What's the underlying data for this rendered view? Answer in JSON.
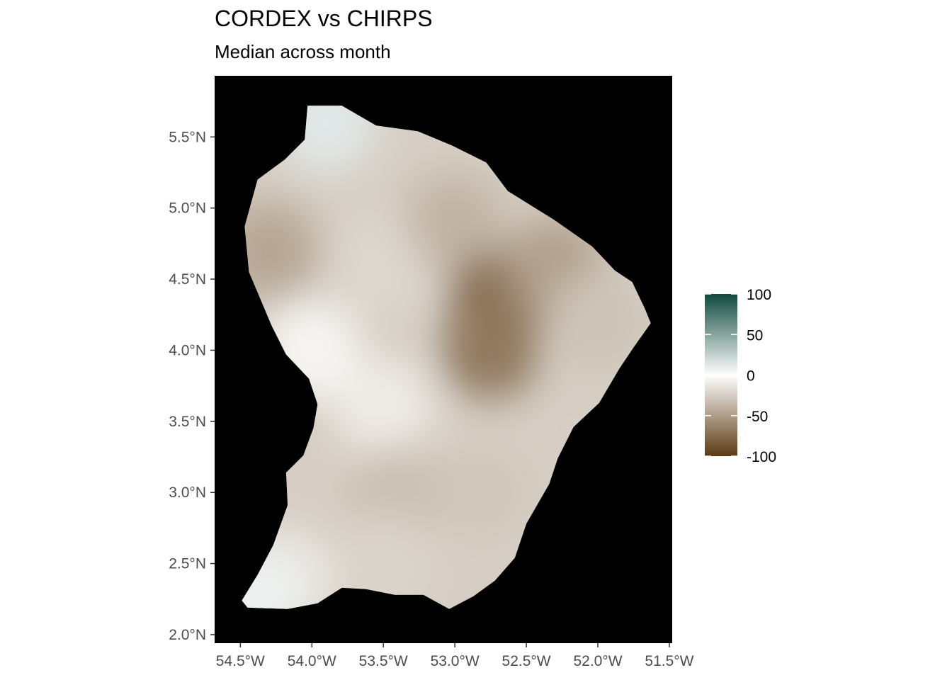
{
  "title": "CORDEX vs CHIRPS",
  "subtitle": "Median across month",
  "map": {
    "region": "French Guiana",
    "panel_background": "#000000",
    "xlim": [
      -54.68,
      -51.48
    ],
    "ylim": [
      1.94,
      5.93
    ],
    "x_ticks": [
      {
        "value": -54.5,
        "label": "54.5°W"
      },
      {
        "value": -54.0,
        "label": "54.0°W"
      },
      {
        "value": -53.5,
        "label": "53.5°W"
      },
      {
        "value": -53.0,
        "label": "53.0°W"
      },
      {
        "value": -52.5,
        "label": "52.5°W"
      },
      {
        "value": -52.0,
        "label": "52.0°W"
      },
      {
        "value": -51.5,
        "label": "51.5°W"
      }
    ],
    "y_ticks": [
      {
        "value": 5.5,
        "label": "5.5°N"
      },
      {
        "value": 5.0,
        "label": "5.0°N"
      },
      {
        "value": 4.5,
        "label": "4.5°N"
      },
      {
        "value": 4.0,
        "label": "4.0°N"
      },
      {
        "value": 3.5,
        "label": "3.5°N"
      },
      {
        "value": 3.0,
        "label": "3.0°N"
      },
      {
        "value": 2.5,
        "label": "2.5°N"
      },
      {
        "value": 2.0,
        "label": "2.0°N"
      }
    ],
    "outline_lonlat": [
      [
        -54.03,
        5.72
      ],
      [
        -53.79,
        5.72
      ],
      [
        -53.55,
        5.58
      ],
      [
        -53.26,
        5.54
      ],
      [
        -53.02,
        5.44
      ],
      [
        -52.78,
        5.32
      ],
      [
        -52.63,
        5.12
      ],
      [
        -52.31,
        4.92
      ],
      [
        -52.04,
        4.73
      ],
      [
        -51.88,
        4.56
      ],
      [
        -51.76,
        4.48
      ],
      [
        -51.67,
        4.29
      ],
      [
        -51.63,
        4.19
      ],
      [
        -51.75,
        4.02
      ],
      [
        -51.85,
        3.87
      ],
      [
        -51.99,
        3.63
      ],
      [
        -52.17,
        3.46
      ],
      [
        -52.28,
        3.24
      ],
      [
        -52.34,
        3.06
      ],
      [
        -52.5,
        2.78
      ],
      [
        -52.58,
        2.54
      ],
      [
        -52.72,
        2.38
      ],
      [
        -52.87,
        2.27
      ],
      [
        -53.04,
        2.18
      ],
      [
        -53.22,
        2.28
      ],
      [
        -53.42,
        2.28
      ],
      [
        -53.62,
        2.32
      ],
      [
        -53.79,
        2.33
      ],
      [
        -53.96,
        2.22
      ],
      [
        -54.17,
        2.18
      ],
      [
        -54.45,
        2.19
      ],
      [
        -54.49,
        2.24
      ],
      [
        -54.38,
        2.42
      ],
      [
        -54.27,
        2.63
      ],
      [
        -54.17,
        2.91
      ],
      [
        -54.18,
        3.14
      ],
      [
        -54.06,
        3.26
      ],
      [
        -53.99,
        3.45
      ],
      [
        -53.96,
        3.62
      ],
      [
        -54.02,
        3.8
      ],
      [
        -54.18,
        3.97
      ],
      [
        -54.28,
        4.17
      ],
      [
        -54.44,
        4.55
      ],
      [
        -54.47,
        4.87
      ],
      [
        -54.38,
        5.2
      ],
      [
        -54.19,
        5.34
      ],
      [
        -54.05,
        5.48
      ]
    ],
    "fill_samples": [
      {
        "lon": -53.9,
        "lat": 5.6,
        "value": 12
      },
      {
        "lon": -54.3,
        "lat": 4.7,
        "value": -45
      },
      {
        "lon": -54.0,
        "lat": 4.0,
        "value": -5
      },
      {
        "lon": -53.5,
        "lat": 4.6,
        "value": -20
      },
      {
        "lon": -53.0,
        "lat": 4.9,
        "value": -38
      },
      {
        "lon": -52.7,
        "lat": 4.35,
        "value": -75
      },
      {
        "lon": -52.75,
        "lat": 4.0,
        "value": -68
      },
      {
        "lon": -52.3,
        "lat": 4.6,
        "value": -48
      },
      {
        "lon": -52.0,
        "lat": 4.2,
        "value": -30
      },
      {
        "lon": -53.5,
        "lat": 3.6,
        "value": -10
      },
      {
        "lon": -53.4,
        "lat": 3.0,
        "value": -32
      },
      {
        "lon": -52.8,
        "lat": 3.0,
        "value": -28
      },
      {
        "lon": -53.5,
        "lat": 2.5,
        "value": -22
      },
      {
        "lon": -54.2,
        "lat": 2.4,
        "value": -12
      },
      {
        "lon": -54.4,
        "lat": 2.25,
        "value": 8
      }
    ]
  },
  "legend": {
    "position": "right",
    "range": [
      -100,
      100
    ],
    "color_low": "#5c3a12",
    "color_mid": "#ffffff",
    "color_high": "#0f4a3d",
    "ticks": [
      {
        "value": 100,
        "label": "100"
      },
      {
        "value": 50,
        "label": "50"
      },
      {
        "value": 0,
        "label": "0"
      },
      {
        "value": -50,
        "label": "-50"
      },
      {
        "value": -100,
        "label": "-100"
      }
    ]
  }
}
